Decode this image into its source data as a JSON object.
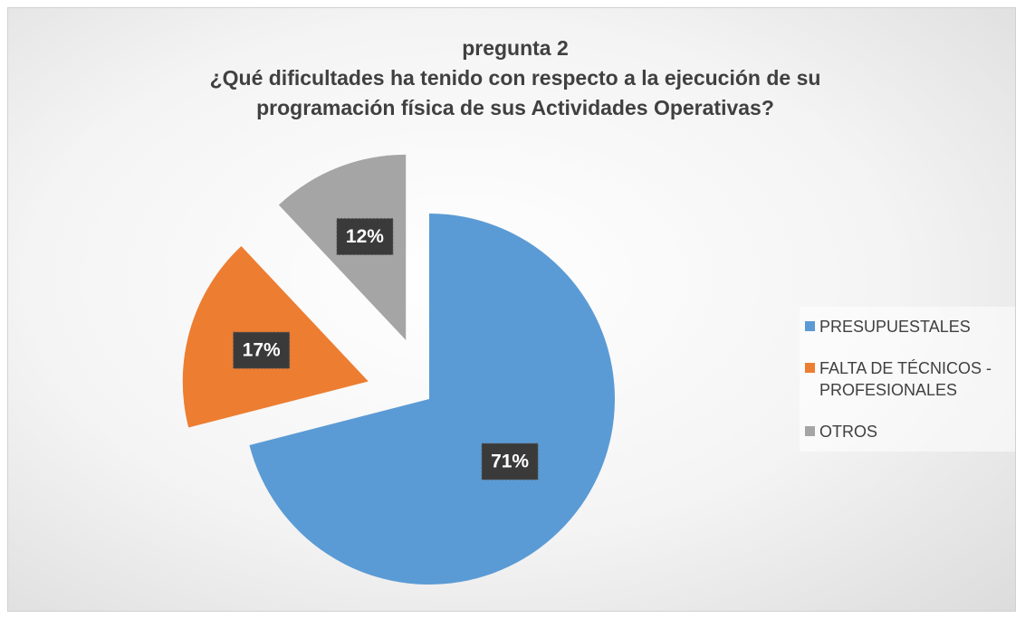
{
  "chart_data": {
    "type": "pie",
    "title": "pregunta 2",
    "subtitle": "¿Qué dificultades ha tenido con respecto a la ejecución de su programación física de sus Actividades Operativas?",
    "categories": [
      "PRESUPUESTALES",
      "FALTA DE TÉCNICOS - PROFESIONALES",
      "OTROS"
    ],
    "values": [
      71,
      17,
      12
    ],
    "value_labels": [
      "71%",
      "17%",
      "12%"
    ],
    "colors": [
      "#5b9bd5",
      "#ed7d31",
      "#a5a5a5"
    ],
    "legend": "right"
  }
}
